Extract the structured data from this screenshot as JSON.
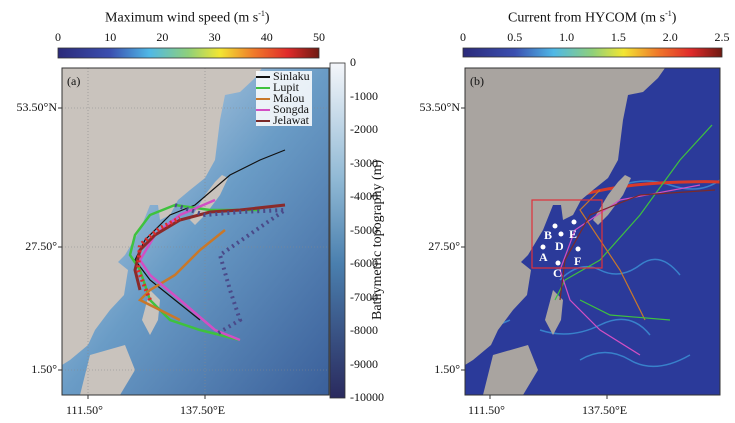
{
  "panel_a": {
    "colorbar_title": "Maximum wind speed (m s",
    "colorbar_title_sup": "-1",
    "colorbar_title_end": ")",
    "colorbar_ticks": [
      "0",
      "10",
      "20",
      "30",
      "40",
      "50"
    ],
    "label": "(a)",
    "lat_ticks": [
      "53.50°N",
      "27.50°",
      "1.50°"
    ],
    "lon_ticks": [
      "111.50°",
      "137.50°E"
    ],
    "legend": [
      {
        "name": "Sinlaku",
        "color": "#111111"
      },
      {
        "name": "Lupit",
        "color": "#3ec23e"
      },
      {
        "name": "Malou",
        "color": "#c8782a"
      },
      {
        "name": "Songda",
        "color": "#d24fc4"
      },
      {
        "name": "Jelawat",
        "color": "#7a2a2a"
      }
    ],
    "bathy_title": "Bathymetric topography (m)",
    "bathy_ticks": [
      "0",
      "-1000",
      "-2000",
      "-3000",
      "-4000",
      "-5000",
      "-6000",
      "-7000",
      "-8000",
      "-9000",
      "-10000"
    ]
  },
  "panel_b": {
    "colorbar_title": "Current from HYCOM (m s",
    "colorbar_title_sup": "-1",
    "colorbar_title_end": ")",
    "colorbar_ticks": [
      "0",
      "0.5",
      "1.0",
      "1.5",
      "2.0",
      "2.5"
    ],
    "label": "(b)",
    "lat_ticks": [
      "53.50°N",
      "27.50°",
      "1.50°"
    ],
    "lon_ticks": [
      "111.50°",
      "137.50°E"
    ],
    "stations": [
      "A",
      "B",
      "C",
      "D",
      "E",
      "F"
    ]
  },
  "colors": {
    "land": "#c9c3bd",
    "jet": [
      "#2b2a7a",
      "#3b4fb0",
      "#4fb8e6",
      "#8fd07a",
      "#f2e632",
      "#f07a2a",
      "#e02a2a",
      "#6e1a12"
    ]
  }
}
